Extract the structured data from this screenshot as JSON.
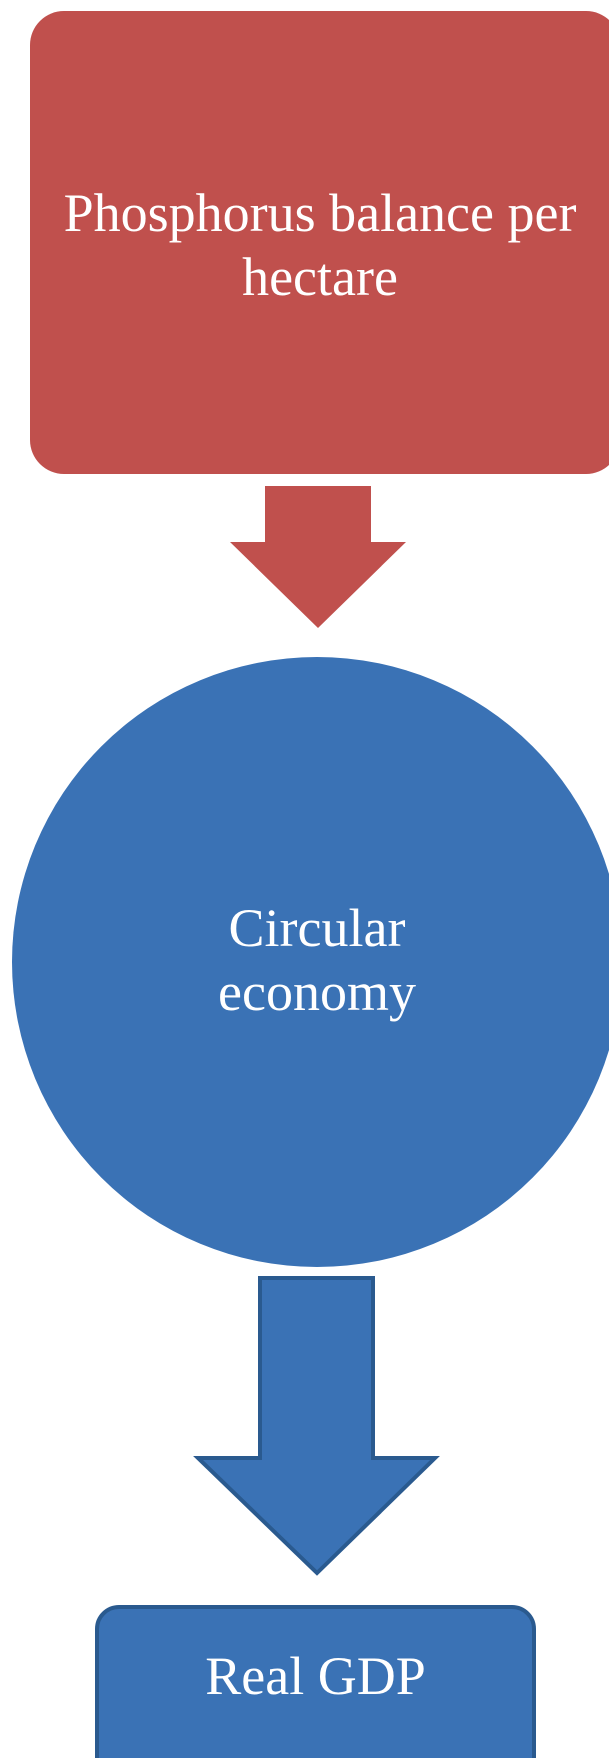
{
  "nodes": [
    {
      "label": "Phosphorus balance per hectare"
    },
    {
      "label": "Circular economy"
    },
    {
      "label": "Real GDP"
    }
  ]
}
